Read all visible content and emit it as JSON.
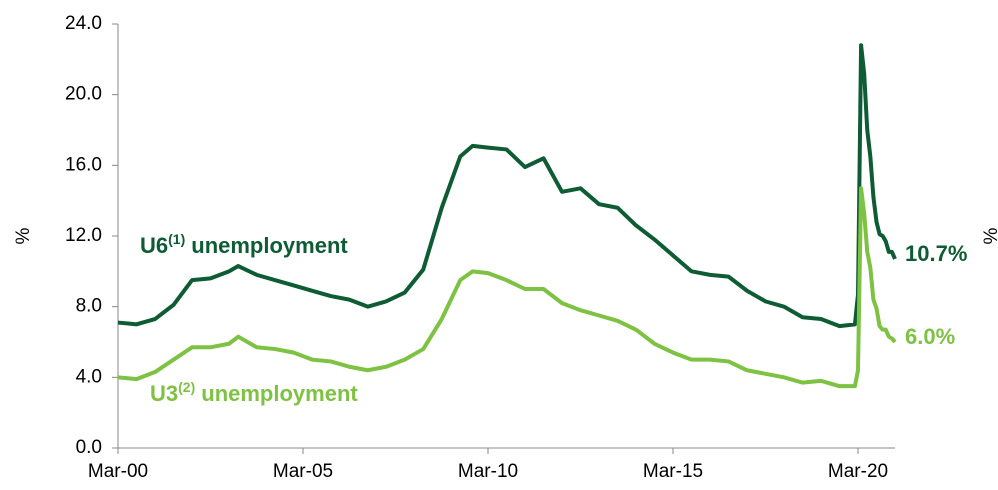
{
  "chart_data": {
    "type": "line",
    "ylabel": "%",
    "y2label": "%",
    "ylim": [
      0,
      24
    ],
    "yticks": [
      {
        "value": 0,
        "label": "0.0"
      },
      {
        "value": 4,
        "label": "4.0"
      },
      {
        "value": 8,
        "label": "8.0"
      },
      {
        "value": 12,
        "label": "12.0"
      },
      {
        "value": 16,
        "label": "16.0"
      },
      {
        "value": 20,
        "label": "20.0"
      },
      {
        "value": 24,
        "label": "24.0"
      }
    ],
    "xlim": [
      "2000-03",
      "2021-03"
    ],
    "xticks": [
      {
        "value": "2000-03",
        "label": "Mar-00"
      },
      {
        "value": "2005-03",
        "label": "Mar-05"
      },
      {
        "value": "2010-03",
        "label": "Mar-10"
      },
      {
        "value": "2015-03",
        "label": "Mar-15"
      },
      {
        "value": "2020-03",
        "label": "Mar-20"
      }
    ],
    "x": [
      "2000-03",
      "2000-09",
      "2001-03",
      "2001-09",
      "2002-03",
      "2002-09",
      "2003-03",
      "2003-06",
      "2003-12",
      "2004-06",
      "2004-12",
      "2005-06",
      "2005-12",
      "2006-06",
      "2006-12",
      "2007-06",
      "2007-12",
      "2008-06",
      "2008-12",
      "2009-06",
      "2009-10",
      "2010-03",
      "2010-09",
      "2011-03",
      "2011-09",
      "2012-03",
      "2012-09",
      "2013-03",
      "2013-09",
      "2014-03",
      "2014-09",
      "2015-03",
      "2015-09",
      "2016-03",
      "2016-09",
      "2017-03",
      "2017-09",
      "2018-03",
      "2018-09",
      "2019-03",
      "2019-09",
      "2020-02",
      "2020-03",
      "2020-04",
      "2020-05",
      "2020-06",
      "2020-07",
      "2020-08",
      "2020-09",
      "2020-10",
      "2020-11",
      "2020-12",
      "2021-01",
      "2021-02",
      "2021-03"
    ],
    "series": [
      {
        "name": "U6",
        "note": "(1)",
        "suffix": "unemployment",
        "end_label": "10.7%",
        "color": "#0d5c34",
        "values": [
          7.1,
          7.0,
          7.3,
          8.1,
          9.5,
          9.6,
          10.0,
          10.3,
          9.8,
          9.5,
          9.2,
          8.9,
          8.6,
          8.4,
          8.0,
          8.3,
          8.8,
          10.1,
          13.6,
          16.5,
          17.1,
          17.0,
          16.9,
          15.9,
          16.4,
          14.5,
          14.7,
          13.8,
          13.6,
          12.6,
          11.8,
          10.9,
          10.0,
          9.8,
          9.7,
          8.9,
          8.3,
          8.0,
          7.4,
          7.3,
          6.9,
          7.0,
          8.7,
          22.8,
          21.2,
          18.0,
          16.5,
          14.2,
          12.8,
          12.1,
          12.0,
          11.7,
          11.1,
          11.1,
          10.7
        ]
      },
      {
        "name": "U3",
        "note": "(2)",
        "suffix": "unemployment",
        "end_label": "6.0%",
        "color": "#7dc242",
        "values": [
          4.0,
          3.9,
          4.3,
          5.0,
          5.7,
          5.7,
          5.9,
          6.3,
          5.7,
          5.6,
          5.4,
          5.0,
          4.9,
          4.6,
          4.4,
          4.6,
          5.0,
          5.6,
          7.3,
          9.5,
          10.0,
          9.9,
          9.5,
          9.0,
          9.0,
          8.2,
          7.8,
          7.5,
          7.2,
          6.7,
          5.9,
          5.4,
          5.0,
          5.0,
          4.9,
          4.4,
          4.2,
          4.0,
          3.7,
          3.8,
          3.5,
          3.5,
          4.4,
          14.7,
          13.3,
          11.1,
          10.2,
          8.4,
          7.9,
          6.9,
          6.7,
          6.7,
          6.3,
          6.2,
          6.0
        ]
      }
    ]
  }
}
